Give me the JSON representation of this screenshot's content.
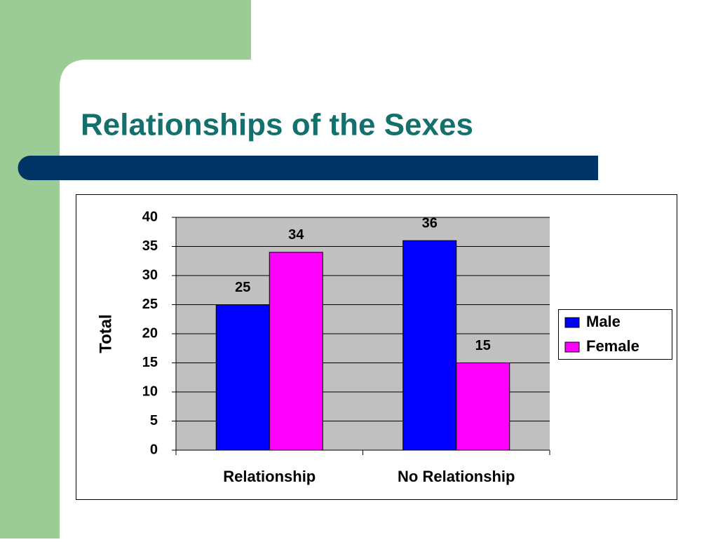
{
  "slide_title": "Relationships of the Sexes",
  "chart_data": {
    "type": "bar",
    "categories": [
      "Relationship",
      "No Relationship"
    ],
    "series": [
      {
        "name": "Male",
        "color": "#0000ff",
        "values": [
          25,
          36
        ]
      },
      {
        "name": "Female",
        "color": "#ff00ff",
        "values": [
          34,
          15
        ]
      }
    ],
    "y_label": "Total",
    "ylim": [
      0,
      40
    ],
    "yticks": [
      0,
      5,
      10,
      15,
      20,
      25,
      30,
      35,
      40
    ],
    "grid": true,
    "legend": "right",
    "data_labels": true
  }
}
